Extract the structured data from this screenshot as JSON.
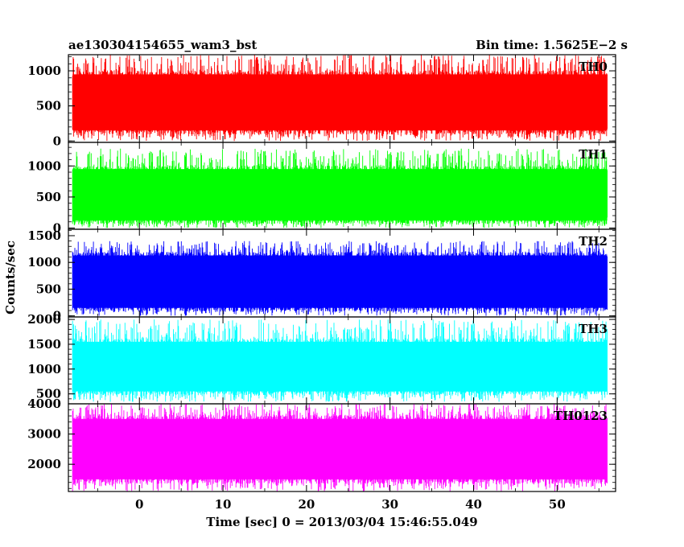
{
  "header": {
    "left": "ae130304154655_wam3_bst",
    "right": "Bin time: 1.5625E−2 s"
  },
  "ylabel": "Counts/sec",
  "xlabel": "Time [sec] 0 = 2013/03/04 15:46:55.049",
  "chart_data": {
    "type": "line",
    "x_range": [
      -8.5,
      57
    ],
    "data_x_range": [
      -8,
      56
    ],
    "x_ticks": [
      0,
      10,
      20,
      30,
      40,
      50
    ],
    "x_tick_labels": [
      "0",
      "10",
      "20",
      "30",
      "40",
      "50"
    ],
    "panels": [
      {
        "name": "TH0",
        "color": "#ff0000",
        "ylim": [
          -20,
          1230
        ],
        "y_ticks": [
          0,
          500,
          1000
        ],
        "y_tick_labels": [
          "0",
          "500",
          "1000"
        ],
        "typical_range": [
          150,
          950
        ],
        "extreme_range": [
          0,
          1230
        ]
      },
      {
        "name": "TH1",
        "color": "#00ff00",
        "ylim": [
          -20,
          1380
        ],
        "y_ticks": [
          0,
          500,
          1000
        ],
        "y_tick_labels": [
          "0",
          "500",
          "1000"
        ],
        "typical_range": [
          120,
          950
        ],
        "extreme_range": [
          0,
          1280
        ]
      },
      {
        "name": "TH2",
        "color": "#0000ff",
        "ylim": [
          -20,
          1620
        ],
        "y_ticks": [
          0,
          500,
          1000,
          1500
        ],
        "y_tick_labels": [
          "0",
          "500",
          "1000",
          "1500"
        ],
        "typical_range": [
          150,
          1130
        ],
        "extreme_range": [
          0,
          1400
        ]
      },
      {
        "name": "TH3",
        "color": "#00ffff",
        "ylim": [
          300,
          2050
        ],
        "y_ticks": [
          500,
          1000,
          1500,
          2000
        ],
        "y_tick_labels": [
          "500",
          "1000",
          "1500",
          "2000"
        ],
        "typical_range": [
          550,
          1550
        ],
        "extreme_range": [
          340,
          2000
        ]
      },
      {
        "name": "TH0123",
        "color": "#ff00ff",
        "ylim": [
          1100,
          4000
        ],
        "y_ticks": [
          2000,
          3000,
          4000
        ],
        "y_tick_labels": [
          "2000",
          "3000",
          "4000"
        ],
        "y_minor_ticks": [
          1500,
          2500,
          3500
        ],
        "typical_range": [
          1500,
          3500
        ],
        "extreme_range": [
          1100,
          4000
        ]
      }
    ]
  }
}
